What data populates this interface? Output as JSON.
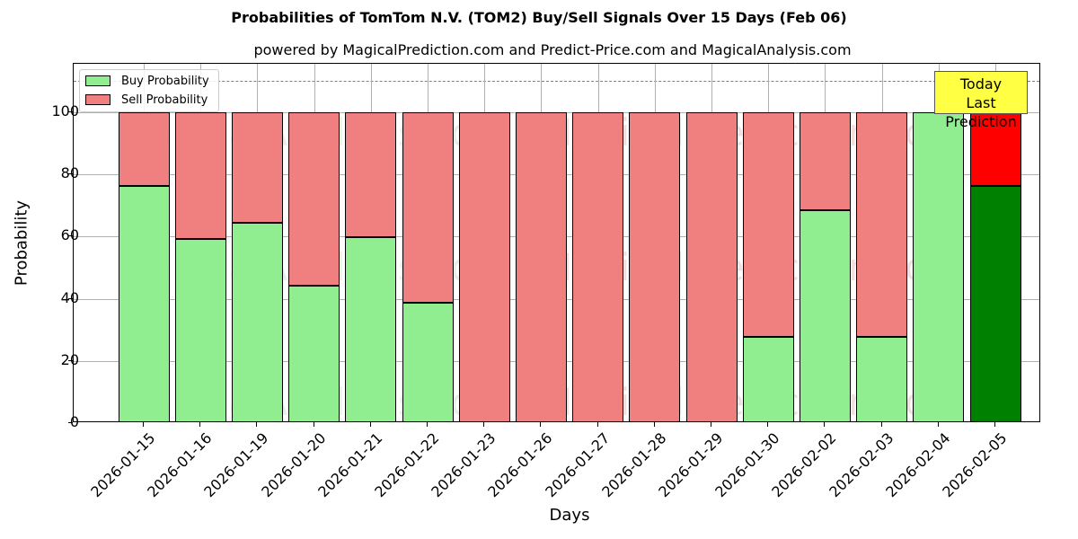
{
  "chart_data": {
    "type": "bar",
    "stacked": true,
    "title": "Probabilities of TomTom N.V. (TOM2) Buy/Sell Signals Over 15 Days (Feb 06)",
    "subtitle": "powered by MagicalPrediction.com and Predict-Price.com and MagicalAnalysis.com",
    "xlabel": "Days",
    "ylabel": "Probability",
    "ylim": [
      0,
      115
    ],
    "yticks": [
      0,
      20,
      40,
      60,
      80,
      100
    ],
    "grid": true,
    "legend_position": "upper left",
    "reference_line": {
      "y": 110,
      "style": "dashed",
      "color": "#808080"
    },
    "categories": [
      "2026-01-15",
      "2026-01-16",
      "2026-01-19",
      "2026-01-20",
      "2026-01-21",
      "2026-01-22",
      "2026-01-23",
      "2026-01-26",
      "2026-01-27",
      "2026-01-28",
      "2026-01-29",
      "2026-01-30",
      "2026-02-02",
      "2026-02-03",
      "2026-02-04",
      "2026-02-05"
    ],
    "series": [
      {
        "name": "Buy Probability",
        "color": "#90ee90",
        "values": [
          76.2,
          59.2,
          64.4,
          44.2,
          59.8,
          38.7,
          0,
          0,
          0,
          0,
          0,
          27.7,
          68.5,
          27.7,
          100,
          76.2
        ]
      },
      {
        "name": "Sell Probability",
        "color": "#f08080",
        "values": [
          23.8,
          40.8,
          35.6,
          55.8,
          40.2,
          61.3,
          100,
          100,
          100,
          100,
          100,
          72.3,
          31.5,
          72.3,
          0,
          23.8
        ]
      }
    ],
    "highlight": {
      "index": 15,
      "buy_color": "#008000",
      "sell_color": "#ff0000",
      "annotation": "Today\nLast Prediction",
      "annotation_bg": "#ffff44"
    }
  },
  "legend": {
    "buy": "Buy Probability",
    "sell": "Sell Probability"
  },
  "annotation": {
    "line1": "Today",
    "line2": "Last Prediction"
  },
  "watermarks": [
    "MagicalAnalysis.com",
    "MagicalPrediction.com"
  ]
}
